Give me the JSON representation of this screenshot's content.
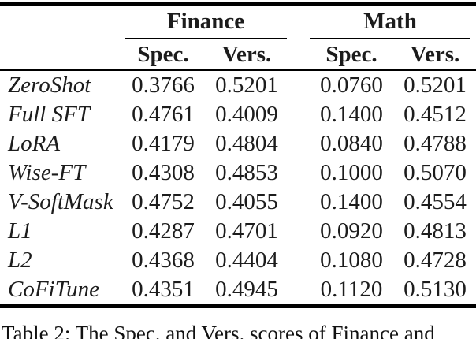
{
  "table": {
    "groups": [
      {
        "label": "Finance"
      },
      {
        "label": "Math"
      }
    ],
    "subheaders": [
      "Spec.",
      "Vers.",
      "Spec.",
      "Vers."
    ],
    "rows": [
      {
        "label": "ZeroShot",
        "values": [
          "0.3766",
          "0.5201",
          "0.0760",
          "0.5201"
        ]
      },
      {
        "label": "Full SFT",
        "values": [
          "0.4761",
          "0.4009",
          "0.1400",
          "0.4512"
        ]
      },
      {
        "label": "LoRA",
        "values": [
          "0.4179",
          "0.4804",
          "0.0840",
          "0.4788"
        ]
      },
      {
        "label": "Wise-FT",
        "values": [
          "0.4308",
          "0.4853",
          "0.1000",
          "0.5070"
        ]
      },
      {
        "label": "V-SoftMask",
        "values": [
          "0.4752",
          "0.4055",
          "0.1400",
          "0.4554"
        ]
      },
      {
        "label": "L1",
        "values": [
          "0.4287",
          "0.4701",
          "0.0920",
          "0.4813"
        ]
      },
      {
        "label": "L2",
        "values": [
          "0.4368",
          "0.4404",
          "0.1080",
          "0.4728"
        ]
      },
      {
        "label": "CoFiTune",
        "values": [
          "0.4351",
          "0.4945",
          "0.1120",
          "0.5130"
        ]
      }
    ]
  },
  "caption": {
    "visible_text": "Table 2: The Spec. and Vers. scores of Finance and"
  },
  "colors": {
    "background": "#ffffff",
    "text": "#1c1c1c",
    "rule": "#000000"
  }
}
